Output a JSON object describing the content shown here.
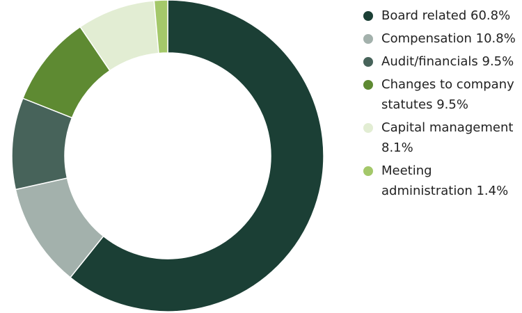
{
  "chart_data": {
    "type": "donut",
    "categories": [
      "Board related",
      "Compensation",
      "Audit/financials",
      "Changes to company statutes",
      "Capital management",
      "Meeting administration"
    ],
    "values": [
      60.8,
      10.8,
      9.5,
      9.5,
      8.1,
      1.4
    ],
    "value_labels": [
      "60.8%",
      "10.8%",
      "9.5%",
      "9.5%",
      "8.1%",
      "1.4%"
    ],
    "colors": [
      "#1b3f35",
      "#a3b1ac",
      "#47635a",
      "#5e8a32",
      "#e2edd3",
      "#a4c86a"
    ],
    "legend": "right"
  }
}
